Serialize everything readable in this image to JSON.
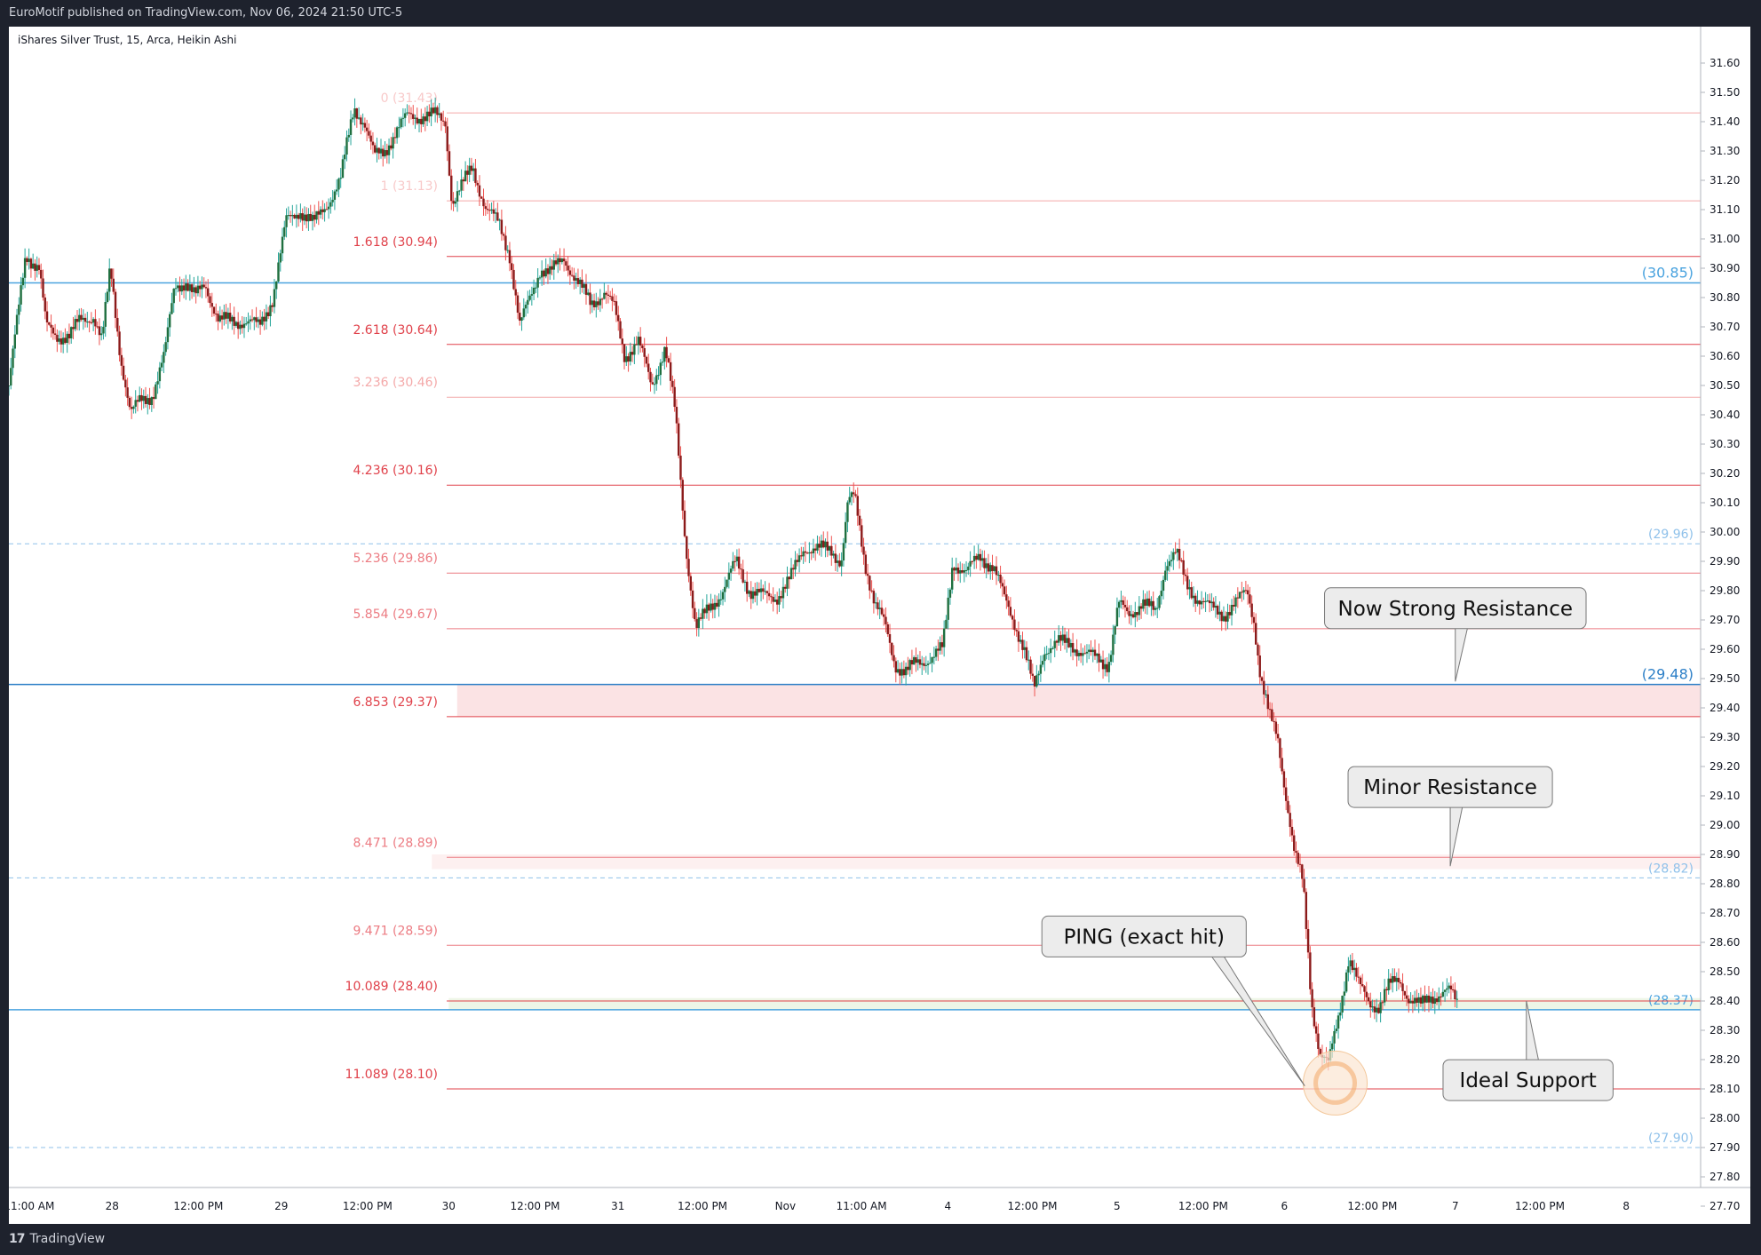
{
  "header": {
    "published": "EuroMotif published on TradingView.com, Nov 06, 2024 21:50 UTC-5"
  },
  "footer": {
    "brand": "TradingView",
    "logo_mark": "17"
  },
  "chart_data": {
    "type": "candlestick",
    "symbol_title": "iShares Silver Trust, 15, Arca, Heikin Ashi",
    "y_range": [
      27.7,
      31.65
    ],
    "y_ticks": [
      "31.60",
      "31.50",
      "31.40",
      "31.30",
      "31.20",
      "31.10",
      "31.00",
      "30.90",
      "30.80",
      "30.70",
      "30.60",
      "30.50",
      "30.40",
      "30.30",
      "30.20",
      "30.10",
      "30.00",
      "29.90",
      "29.80",
      "29.70",
      "29.60",
      "29.50",
      "29.40",
      "29.30",
      "29.20",
      "29.10",
      "29.00",
      "28.90",
      "28.80",
      "28.70",
      "28.60",
      "28.50",
      "28.40",
      "28.30",
      "28.20",
      "28.10",
      "28.00",
      "27.90",
      "27.80",
      "27.70"
    ],
    "x_labels": [
      {
        "label": "11:00 AM",
        "pos": 0.012
      },
      {
        "label": "28",
        "pos": 0.061
      },
      {
        "label": "12:00 PM",
        "pos": 0.112
      },
      {
        "label": "29",
        "pos": 0.161
      },
      {
        "label": "12:00 PM",
        "pos": 0.212
      },
      {
        "label": "30",
        "pos": 0.26
      },
      {
        "label": "12:00 PM",
        "pos": 0.311
      },
      {
        "label": "31",
        "pos": 0.36
      },
      {
        "label": "12:00 PM",
        "pos": 0.41
      },
      {
        "label": "Nov",
        "pos": 0.459
      },
      {
        "label": "11:00 AM",
        "pos": 0.504
      },
      {
        "label": "4",
        "pos": 0.555
      },
      {
        "label": "12:00 PM",
        "pos": 0.605
      },
      {
        "label": "5",
        "pos": 0.655
      },
      {
        "label": "12:00 PM",
        "pos": 0.706
      },
      {
        "label": "6",
        "pos": 0.754
      },
      {
        "label": "12:00 PM",
        "pos": 0.806
      },
      {
        "label": "7",
        "pos": 0.855
      },
      {
        "label": "12:00 PM",
        "pos": 0.905
      },
      {
        "label": "8",
        "pos": 0.956
      }
    ],
    "price_path": [
      [
        0.0,
        30.5
      ],
      [
        0.01,
        30.95
      ],
      [
        0.018,
        30.9
      ],
      [
        0.022,
        30.7
      ],
      [
        0.028,
        30.67
      ],
      [
        0.036,
        30.67
      ],
      [
        0.042,
        30.72
      ],
      [
        0.05,
        30.74
      ],
      [
        0.055,
        30.65
      ],
      [
        0.06,
        30.9
      ],
      [
        0.066,
        30.6
      ],
      [
        0.072,
        30.4
      ],
      [
        0.078,
        30.45
      ],
      [
        0.085,
        30.47
      ],
      [
        0.092,
        30.6
      ],
      [
        0.098,
        30.85
      ],
      [
        0.104,
        30.85
      ],
      [
        0.11,
        30.8
      ],
      [
        0.116,
        30.85
      ],
      [
        0.124,
        30.72
      ],
      [
        0.132,
        30.72
      ],
      [
        0.14,
        30.72
      ],
      [
        0.148,
        30.7
      ],
      [
        0.156,
        30.8
      ],
      [
        0.164,
        31.06
      ],
      [
        0.172,
        31.1
      ],
      [
        0.18,
        31.05
      ],
      [
        0.188,
        31.12
      ],
      [
        0.196,
        31.2
      ],
      [
        0.204,
        31.45
      ],
      [
        0.21,
        31.4
      ],
      [
        0.216,
        31.28
      ],
      [
        0.222,
        31.3
      ],
      [
        0.228,
        31.36
      ],
      [
        0.236,
        31.42
      ],
      [
        0.244,
        31.42
      ],
      [
        0.252,
        31.42
      ],
      [
        0.258,
        31.4
      ],
      [
        0.262,
        31.12
      ],
      [
        0.268,
        31.18
      ],
      [
        0.274,
        31.25
      ],
      [
        0.282,
        31.1
      ],
      [
        0.29,
        31.05
      ],
      [
        0.296,
        30.95
      ],
      [
        0.302,
        30.7
      ],
      [
        0.308,
        30.8
      ],
      [
        0.314,
        30.9
      ],
      [
        0.32,
        30.88
      ],
      [
        0.328,
        30.94
      ],
      [
        0.336,
        30.85
      ],
      [
        0.344,
        30.78
      ],
      [
        0.352,
        30.82
      ],
      [
        0.358,
        30.76
      ],
      [
        0.364,
        30.6
      ],
      [
        0.372,
        30.65
      ],
      [
        0.38,
        30.5
      ],
      [
        0.388,
        30.63
      ],
      [
        0.394,
        30.4
      ],
      [
        0.4,
        29.96
      ],
      [
        0.406,
        29.67
      ],
      [
        0.414,
        29.74
      ],
      [
        0.422,
        29.8
      ],
      [
        0.43,
        29.9
      ],
      [
        0.438,
        29.8
      ],
      [
        0.446,
        29.78
      ],
      [
        0.454,
        29.78
      ],
      [
        0.462,
        29.84
      ],
      [
        0.47,
        29.95
      ],
      [
        0.478,
        29.94
      ],
      [
        0.486,
        29.94
      ],
      [
        0.492,
        29.9
      ],
      [
        0.496,
        30.1
      ],
      [
        0.5,
        30.12
      ],
      [
        0.506,
        29.9
      ],
      [
        0.512,
        29.75
      ],
      [
        0.518,
        29.68
      ],
      [
        0.524,
        29.55
      ],
      [
        0.53,
        29.52
      ],
      [
        0.536,
        29.55
      ],
      [
        0.544,
        29.57
      ],
      [
        0.552,
        29.6
      ],
      [
        0.558,
        29.9
      ],
      [
        0.566,
        29.86
      ],
      [
        0.574,
        29.92
      ],
      [
        0.582,
        29.88
      ],
      [
        0.588,
        29.78
      ],
      [
        0.594,
        29.7
      ],
      [
        0.6,
        29.6
      ],
      [
        0.606,
        29.46
      ],
      [
        0.612,
        29.6
      ],
      [
        0.62,
        29.62
      ],
      [
        0.628,
        29.62
      ],
      [
        0.636,
        29.58
      ],
      [
        0.644,
        29.57
      ],
      [
        0.65,
        29.55
      ],
      [
        0.656,
        29.75
      ],
      [
        0.662,
        29.72
      ],
      [
        0.67,
        29.76
      ],
      [
        0.678,
        29.72
      ],
      [
        0.684,
        29.9
      ],
      [
        0.69,
        29.93
      ],
      [
        0.696,
        29.82
      ],
      [
        0.702,
        29.78
      ],
      [
        0.71,
        29.74
      ],
      [
        0.718,
        29.72
      ],
      [
        0.726,
        29.76
      ],
      [
        0.732,
        29.8
      ],
      [
        0.736,
        29.7
      ],
      [
        0.74,
        29.5
      ],
      [
        0.745,
        29.37
      ],
      [
        0.75,
        29.3
      ],
      [
        0.755,
        29.1
      ],
      [
        0.76,
        28.9
      ],
      [
        0.765,
        28.8
      ],
      [
        0.77,
        28.4
      ],
      [
        0.775,
        28.22
      ],
      [
        0.78,
        28.18
      ],
      [
        0.786,
        28.35
      ],
      [
        0.792,
        28.55
      ],
      [
        0.798,
        28.45
      ],
      [
        0.804,
        28.4
      ],
      [
        0.81,
        28.38
      ],
      [
        0.816,
        28.45
      ],
      [
        0.822,
        28.48
      ],
      [
        0.828,
        28.4
      ],
      [
        0.834,
        28.38
      ],
      [
        0.84,
        28.42
      ],
      [
        0.846,
        28.42
      ],
      [
        0.852,
        28.43
      ],
      [
        0.856,
        28.4
      ]
    ],
    "fib_levels": [
      {
        "ratio": "0",
        "price": 31.43,
        "label": "0 (31.43)",
        "color": "#f8c9c9",
        "line": "#f4a9a9"
      },
      {
        "ratio": "1",
        "price": 31.13,
        "label": "1 (31.13)",
        "color": "#f8c9c9",
        "line": "#f4a9a9"
      },
      {
        "ratio": "1.618",
        "price": 30.94,
        "label": "1.618 (30.94)",
        "color": "#e0414a",
        "line": "#e0414a"
      },
      {
        "ratio": "2.618",
        "price": 30.64,
        "label": "2.618 (30.64)",
        "color": "#e0414a",
        "line": "#e0414a"
      },
      {
        "ratio": "3.236",
        "price": 30.46,
        "label": "3.236 (30.46)",
        "color": "#f4a9a9",
        "line": "#f4a9a9"
      },
      {
        "ratio": "4.236",
        "price": 30.16,
        "label": "4.236 (30.16)",
        "color": "#e0414a",
        "line": "#e0414a"
      },
      {
        "ratio": "5.236",
        "price": 29.86,
        "label": "5.236 (29.86)",
        "color": "#ec7b82",
        "line": "#ec7b82"
      },
      {
        "ratio": "5.854",
        "price": 29.67,
        "label": "5.854 (29.67)",
        "color": "#ec7b82",
        "line": "#ec7b82"
      },
      {
        "ratio": "6.853",
        "price": 29.37,
        "label": "6.853 (29.37)",
        "color": "#e0414a",
        "line": "#e0414a"
      },
      {
        "ratio": "8.471",
        "price": 28.89,
        "label": "8.471 (28.89)",
        "color": "#ec7b82",
        "line": "#ec7b82"
      },
      {
        "ratio": "9.471",
        "price": 28.59,
        "label": "9.471 (28.59)",
        "color": "#ec7b82",
        "line": "#ec7b82"
      },
      {
        "ratio": "10.089",
        "price": 28.4,
        "label": "10.089 (28.40)",
        "color": "#e0414a",
        "line": "#e0414a"
      },
      {
        "ratio": "11.089",
        "price": 28.1,
        "label": "11.089 (28.10)",
        "color": "#e0414a",
        "line": "#e0414a"
      }
    ],
    "horizontal_levels": [
      {
        "price": 30.85,
        "label": "(30.85)",
        "style": "solid",
        "color": "#4aa3df",
        "full": true
      },
      {
        "price": 29.96,
        "label": "(29.96)",
        "style": "dashed",
        "color": "#8fc1ea",
        "full": true
      },
      {
        "price": 29.48,
        "label": "(29.48)",
        "style": "solid",
        "color": "#2c7fc7",
        "full": true
      },
      {
        "price": 28.82,
        "label": "(28.82)",
        "style": "dashed",
        "color": "#8fc1ea",
        "full": true
      },
      {
        "price": 28.37,
        "label": "(28.37)",
        "style": "solid",
        "color": "#4aa3df",
        "full": true
      },
      {
        "price": 27.9,
        "label": "(27.90)",
        "style": "dashed",
        "color": "#8fc1ea",
        "full": true
      }
    ],
    "zones": [
      {
        "from": 29.37,
        "to": 29.48,
        "color": "#fbe3e4",
        "start": 0.265
      },
      {
        "from": 28.85,
        "to": 28.9,
        "color": "#fdf0f0",
        "start": 0.25
      },
      {
        "from": 28.37,
        "to": 28.41,
        "color": "#eef6e7",
        "start": 0.26
      }
    ],
    "annotations": [
      {
        "text": "Now Strong Resistance",
        "box_pos": 0.855,
        "box_price": 29.74,
        "tip_pos": 0.855,
        "tip_price": 29.49
      },
      {
        "text": "Minor Resistance",
        "box_pos": 0.852,
        "box_price": 29.13,
        "tip_pos": 0.852,
        "tip_price": 28.86
      },
      {
        "text": "PING (exact hit)",
        "box_pos": 0.671,
        "box_price": 28.62,
        "tip_pos": 0.766,
        "tip_price": 28.11
      },
      {
        "text": "Ideal Support",
        "box_pos": 0.898,
        "box_price": 28.13,
        "tip_pos": 0.897,
        "tip_price": 28.4
      }
    ],
    "marker": {
      "pos": 0.784,
      "price": 28.12
    },
    "colors": {
      "up": "#26a69a",
      "down": "#ef5350",
      "body_up": "#1f6f3f",
      "body_down": "#8b1a1a"
    }
  }
}
